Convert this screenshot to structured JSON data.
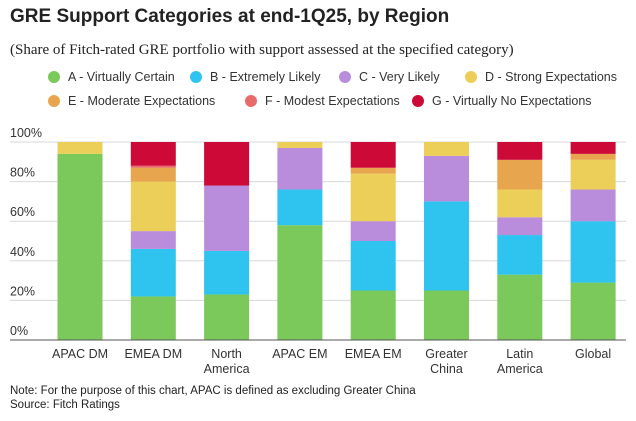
{
  "title": "GRE Support Categories at end-1Q25, by Region",
  "subtitle": "(Share of Fitch-rated GRE portfolio with support assessed at the specified category)",
  "footer": {
    "note": "Note: For the purpose of this chart, APAC is defined as excluding Greater China",
    "source": "Source: Fitch Ratings"
  },
  "chart_data": {
    "type": "bar",
    "stacked": true,
    "grid": "horizontal",
    "legend_position": "top",
    "ylim": [
      0,
      100
    ],
    "yticks": [
      "0%",
      "20%",
      "40%",
      "60%",
      "80%",
      "100%"
    ],
    "categories": [
      [
        "APAC DM"
      ],
      [
        "EMEA DM"
      ],
      [
        "North",
        "America"
      ],
      [
        "APAC EM"
      ],
      [
        "EMEA EM"
      ],
      [
        "Greater",
        "China"
      ],
      [
        "Latin",
        "America"
      ],
      [
        "Global"
      ]
    ],
    "series": [
      {
        "name": "A - Virtually Certain",
        "color": "#7ac95a",
        "values": [
          94,
          22,
          23,
          58,
          25,
          25,
          33,
          29
        ]
      },
      {
        "name": "B - Extremely Likely",
        "color": "#2fc3f0",
        "values": [
          0,
          24,
          22,
          18,
          25,
          45,
          20,
          31
        ]
      },
      {
        "name": "C - Very Likely",
        "color": "#b98ddb",
        "values": [
          0,
          9,
          33,
          21,
          10,
          23,
          9,
          16
        ]
      },
      {
        "name": "D - Strong Expectations",
        "color": "#eccf58",
        "values": [
          6,
          25,
          0,
          3,
          24,
          7,
          14,
          15
        ]
      },
      {
        "name": "E - Moderate Expectations",
        "color": "#e7a64e",
        "values": [
          0,
          7,
          0,
          0,
          3,
          0,
          15,
          3
        ]
      },
      {
        "name": "F - Modest Expectations",
        "color": "#e96a6a",
        "values": [
          0,
          1,
          0,
          0,
          0,
          0,
          0,
          0
        ]
      },
      {
        "name": "G - Virtually No Expectations",
        "color": "#cd0a37",
        "values": [
          0,
          12,
          22,
          0,
          13,
          0,
          9,
          6
        ]
      }
    ]
  }
}
